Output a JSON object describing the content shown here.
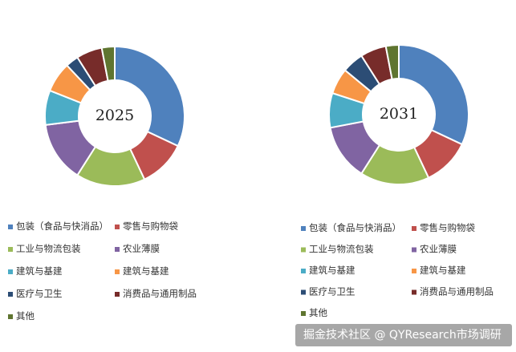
{
  "chart_data": [
    {
      "type": "donut",
      "title": "2025",
      "categories": [
        "包装（食品与快消品）",
        "零售与购物袋",
        "工业与物流包装",
        "农业薄膜",
        "建筑与基建",
        "建筑与基建",
        "医疗与卫生",
        "消费品与通用制品",
        "其他"
      ],
      "values": [
        32,
        11,
        16,
        14,
        8,
        7,
        3,
        6,
        3
      ],
      "colors": [
        "#4f81bd",
        "#c0504d",
        "#9bbb59",
        "#8064a2",
        "#4bacc6",
        "#f79646",
        "#2c4d75",
        "#772c2a",
        "#5f7530"
      ]
    },
    {
      "type": "donut",
      "title": "2031",
      "categories": [
        "包装（食品与快消品）",
        "零售与购物袋",
        "工业与物流包装",
        "农业薄膜",
        "建筑与基建",
        "建筑与基建",
        "医疗与卫生",
        "消费品与通用制品",
        "其他"
      ],
      "values": [
        32,
        11,
        16,
        13,
        8,
        6,
        5,
        6,
        3
      ],
      "colors": [
        "#4f81bd",
        "#c0504d",
        "#9bbb59",
        "#8064a2",
        "#4bacc6",
        "#f79646",
        "#2c4d75",
        "#772c2a",
        "#5f7530"
      ]
    }
  ],
  "watermark": "掘金技术社区 @ QYResearch市场调研"
}
